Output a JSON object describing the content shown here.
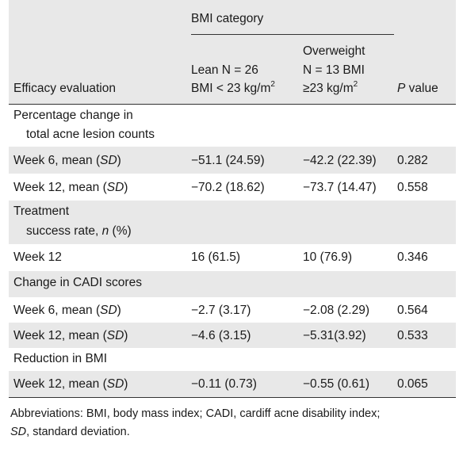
{
  "header": {
    "group_label": "BMI category",
    "col_efficacy": "Efficacy evaluation",
    "col_lean_line1": "Lean N = 26",
    "col_lean_line2_prefix": "BMI < 23 kg/m",
    "col_lean_sup": "2",
    "col_over_line1": "Overweight",
    "col_over_line2": "N = 13 BMI",
    "col_over_line3_prefix": "≥23 kg/m",
    "col_over_sup": "2",
    "col_p_italic": "P",
    "col_p_rest": " value"
  },
  "sections": [
    {
      "title_line1": "Percentage change in",
      "title_line2": "total acne lesion counts",
      "rows": [
        {
          "label_prefix": "Week 6, mean (",
          "label_italic": "SD",
          "label_suffix": ")",
          "lean": "−51.1 (24.59)",
          "over": "−42.2 (22.39)",
          "p": "0.282"
        },
        {
          "label_prefix": "Week 12, mean (",
          "label_italic": "SD",
          "label_suffix": ")",
          "lean": "−70.2 (18.62)",
          "over": "−73.7 (14.47)",
          "p": "0.558"
        }
      ]
    },
    {
      "title_line1": "Treatment",
      "title_line2_prefix": "success rate, ",
      "title_line2_italic": "n",
      "title_line2_suffix": " (%)",
      "rows": [
        {
          "label": "Week 12",
          "lean": "16 (61.5)",
          "over": "10 (76.9)",
          "p": "0.346"
        }
      ]
    },
    {
      "title": "Change in CADI scores",
      "rows": [
        {
          "label_prefix": "Week 6, mean (",
          "label_italic": "SD",
          "label_suffix": ")",
          "lean": "−2.7 (3.17)",
          "over": "−2.08 (2.29)",
          "p": "0.564"
        },
        {
          "label_prefix": "Week 12, mean (",
          "label_italic": "SD",
          "label_suffix": ")",
          "lean": "−4.6 (3.15)",
          "over": "−5.31(3.92)",
          "p": "0.533"
        }
      ]
    },
    {
      "title": "Reduction in BMI",
      "rows": [
        {
          "label_prefix": "Week 12, mean (",
          "label_italic": "SD",
          "label_suffix": ")",
          "lean": "−0.11 (0.73)",
          "over": "−0.55 (0.61)",
          "p": "0.065"
        }
      ]
    }
  ],
  "footnote": {
    "line1": "Abbreviations: BMI, body mass index; CADI, cardiff acne disability index;",
    "line2_italic": "SD",
    "line2_rest": ", standard deviation."
  }
}
